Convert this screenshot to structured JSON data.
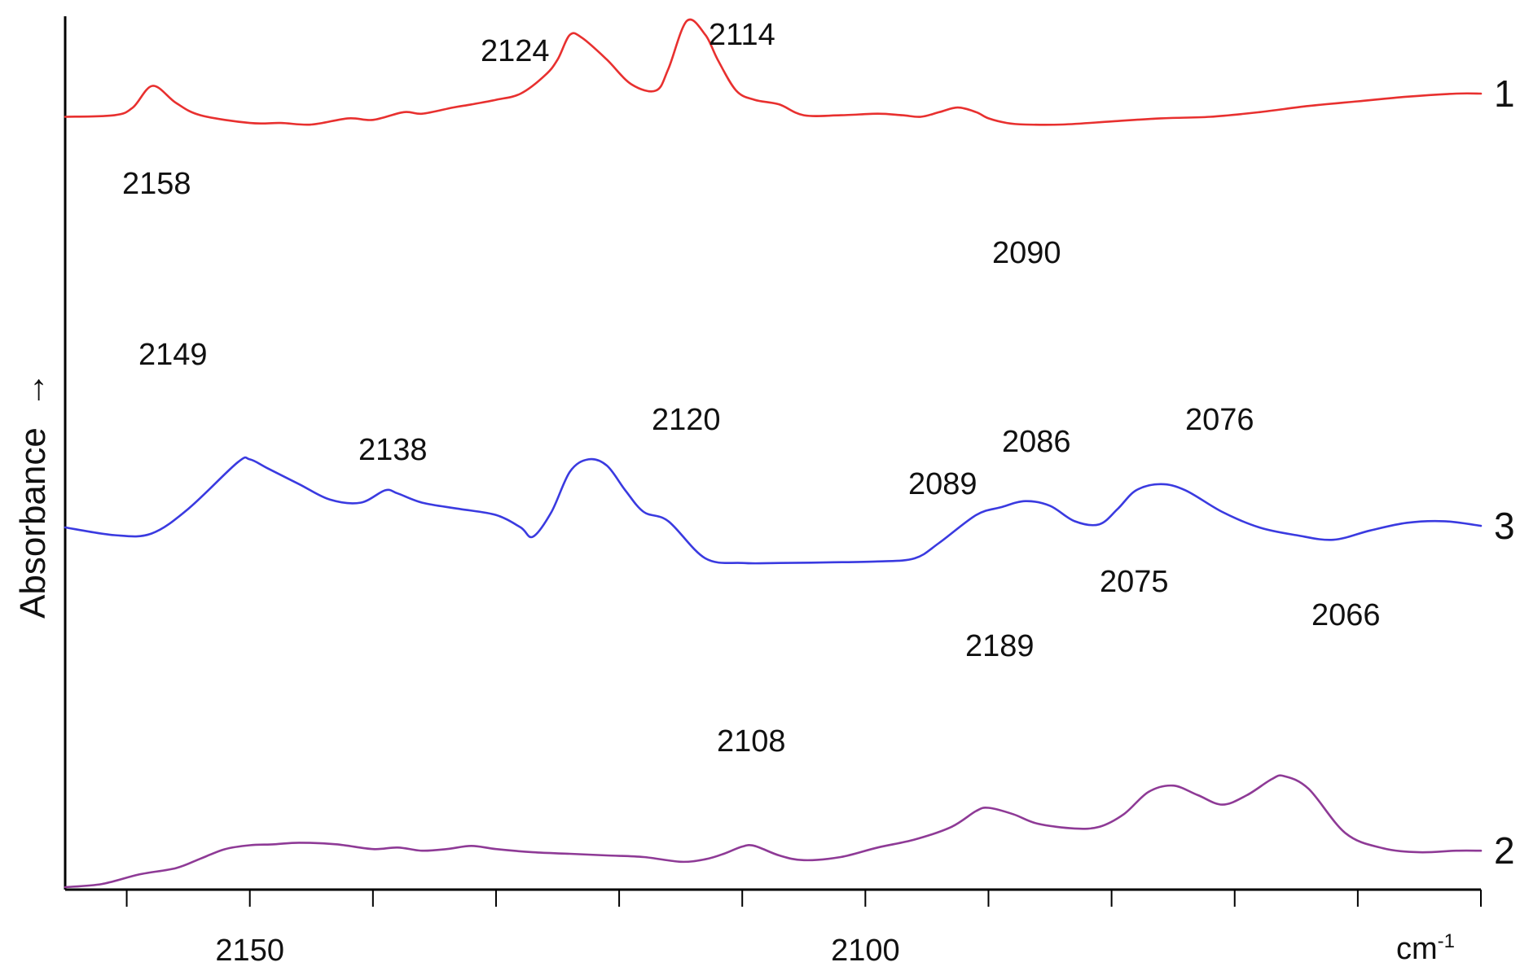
{
  "chart_data": {
    "type": "line",
    "title": "",
    "xlabel": "",
    "ylabel": "Absorbance",
    "ylabel_arrow": "→",
    "x_unit": "cm",
    "x_unit_sup": "-1",
    "xlim": [
      2165,
      2050
    ],
    "x_reversed": true,
    "ylim": [
      0,
      100
    ],
    "x_tick_labels": [
      {
        "x": 2150,
        "label": "2150"
      },
      {
        "x": 2100,
        "label": "2100"
      }
    ],
    "x_minor_ticks": [
      2160,
      2150,
      2140,
      2130,
      2120,
      2110,
      2100,
      2090,
      2080,
      2070,
      2060,
      2050
    ],
    "grid": false,
    "series": [
      {
        "name": "1",
        "color": "#e8302f",
        "x": [
          2165,
          2161,
          2159.5,
          2157.9,
          2156,
          2154,
          2150,
          2147.5,
          2145,
          2142,
          2140,
          2137.5,
          2136,
          2133.5,
          2132,
          2130,
          2128,
          2126,
          2125,
          2124,
          2123,
          2121,
          2119,
          2117,
          2116,
          2114.5,
          2113,
          2112,
          2110.5,
          2109,
          2107,
          2105,
          2102,
          2099,
          2097,
          2095.5,
          2094,
          2092.5,
          2091,
          2090,
          2088.5,
          2087,
          2084,
          2080,
          2076,
          2072,
          2068,
          2064,
          2060,
          2056,
          2052,
          2050
        ],
        "y": [
          67.5,
          68,
          70.5,
          77.5,
          72,
          68,
          65.5,
          65.5,
          65,
          67,
          66.5,
          69,
          68.5,
          70.5,
          71.5,
          73,
          75,
          81,
          86,
          94,
          93,
          86,
          78,
          76,
          83,
          98.5,
          94,
          86,
          76,
          73,
          71.5,
          68,
          68,
          68.5,
          68,
          67.5,
          69,
          70.5,
          69,
          67,
          65.5,
          65,
          65,
          66,
          67,
          67.5,
          69,
          71,
          72.5,
          74,
          75,
          75
        ],
        "label_text": "1"
      },
      {
        "name": "3",
        "color": "#3a3ae0",
        "x": [
          2165,
          2161,
          2158,
          2155,
          2151,
          2150,
          2148.5,
          2146,
          2143.5,
          2141,
          2139,
          2138,
          2136,
          2133,
          2130,
          2128,
          2127,
          2125.5,
          2124,
          2122.5,
          2121,
          2119.5,
          2118,
          2116,
          2113,
          2110,
          2107,
          2103,
          2099,
          2096,
          2094,
          2091,
          2089,
          2087,
          2085,
          2083,
          2081,
          2079.5,
          2078,
          2076,
          2074,
          2071,
          2068,
          2065,
          2062,
          2059,
          2056,
          2053,
          2050
        ],
        "y": [
          40,
          37.5,
          38,
          46,
          61,
          62,
          59,
          54,
          49,
          48,
          52,
          51,
          48,
          46,
          44,
          40,
          37,
          45,
          58,
          62,
          60,
          52,
          45,
          42,
          30,
          28.5,
          28.5,
          28.7,
          29,
          30,
          35,
          44,
          46.5,
          48.5,
          47,
          42,
          41,
          46,
          52,
          54,
          52,
          45,
          40,
          37.5,
          36,
          39,
          41.5,
          42,
          40.5
        ],
        "label_text": "3"
      },
      {
        "name": "2",
        "color": "#8e3a96",
        "x": [
          2165,
          2162,
          2159,
          2156,
          2154,
          2152,
          2150,
          2148,
          2146,
          2143,
          2140,
          2138,
          2136,
          2134,
          2132,
          2130,
          2127,
          2124,
          2121,
          2118,
          2115,
          2113,
          2111.5,
          2110,
          2109,
          2107,
          2105,
          2102,
          2099,
          2096,
          2093,
          2091,
          2090,
          2088,
          2086,
          2083,
          2081,
          2079,
          2077,
          2075,
          2073,
          2071,
          2069,
          2067,
          2066,
          2064,
          2061,
          2058,
          2055,
          2052,
          2050
        ],
        "y": [
          0,
          1,
          4,
          6,
          9,
          12,
          13.2,
          13.5,
          14,
          13.5,
          12,
          12.5,
          11.5,
          12,
          13,
          12,
          11,
          10.5,
          10,
          9.5,
          8,
          8.8,
          10.5,
          12.8,
          13,
          10,
          8.5,
          9.5,
          12.5,
          15,
          19,
          24,
          25,
          23,
          20,
          18.5,
          19,
          23,
          30,
          32,
          29,
          26,
          29,
          34,
          35,
          31,
          17,
          12.3,
          11,
          11.5,
          11.5
        ],
        "label_text": "2"
      }
    ],
    "annotations": [
      {
        "text": "2158",
        "series": "1"
      },
      {
        "text": "2124",
        "series": "1"
      },
      {
        "text": "2114",
        "series": "1"
      },
      {
        "text": "2090",
        "series": "1"
      },
      {
        "text": "2149",
        "series": "3"
      },
      {
        "text": "2138",
        "series": "3"
      },
      {
        "text": "2120",
        "series": "3"
      },
      {
        "text": "2089",
        "series": "3"
      },
      {
        "text": "2086",
        "series": "3"
      },
      {
        "text": "2076",
        "series": "3"
      },
      {
        "text": "2108",
        "series": "2"
      },
      {
        "text": "2189",
        "series": "2"
      },
      {
        "text": "2075",
        "series": "2"
      },
      {
        "text": "2066",
        "series": "2"
      }
    ]
  }
}
